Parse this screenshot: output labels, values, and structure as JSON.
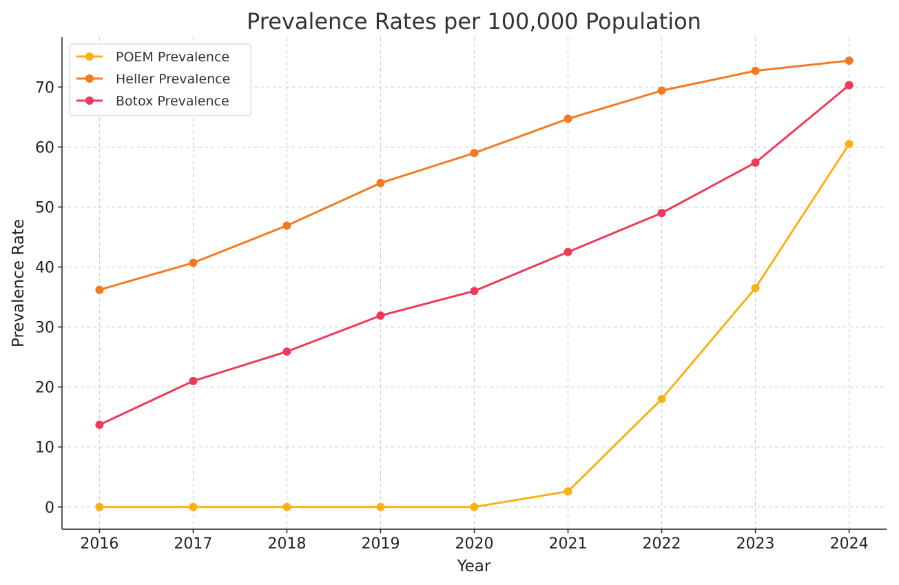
{
  "chart_data": {
    "type": "line",
    "title": "Prevalence Rates per 100,000 Population",
    "xlabel": "Year",
    "ylabel": "Prevalence Rate",
    "x": [
      2016,
      2017,
      2018,
      2019,
      2020,
      2021,
      2022,
      2023,
      2024
    ],
    "xlim": [
      2015.6,
      2024.4
    ],
    "ylim": [
      -3.7,
      78.3
    ],
    "yticks": [
      0,
      10,
      20,
      30,
      40,
      50,
      60,
      70
    ],
    "grid": true,
    "legend_position": "top-left",
    "series": [
      {
        "name": "POEM Prevalence",
        "color": "#FBB114",
        "values": [
          0,
          0,
          0,
          0,
          0,
          2.6,
          18.0,
          36.5,
          60.5
        ]
      },
      {
        "name": "Heller Prevalence",
        "color": "#F47A21",
        "values": [
          36.2,
          40.7,
          46.9,
          54.0,
          59.0,
          64.7,
          69.4,
          72.7,
          74.4
        ]
      },
      {
        "name": "Botox Prevalence",
        "color": "#EE3A57",
        "values": [
          13.7,
          21.0,
          25.9,
          31.9,
          36.0,
          42.5,
          49.0,
          57.4,
          70.3
        ]
      }
    ]
  }
}
